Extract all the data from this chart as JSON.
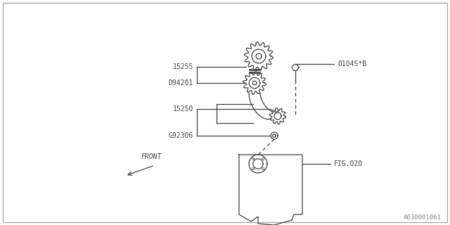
{
  "bg_color": "#ffffff",
  "line_color": "#404040",
  "text_color": "#404040",
  "fig_width": 6.4,
  "fig_height": 3.2,
  "dpi": 100,
  "watermark": "A030001061",
  "label_15255": "15255",
  "label_D94201": "D94201",
  "label_15250": "15250",
  "label_G92306": "G92306",
  "label_bolt": "0104S*B",
  "label_fig": "FIG.020",
  "label_front": "FRONT"
}
